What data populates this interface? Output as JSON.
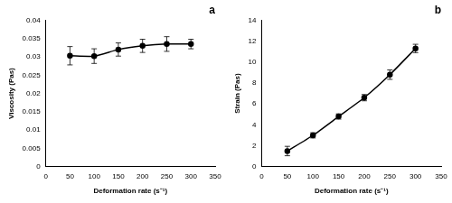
{
  "chart_data": [
    {
      "type": "line",
      "title": "a",
      "x_label": "Deformation rate (s⁻¹)",
      "y_label": "Viscosity (Pas)",
      "x": [
        50,
        100,
        150,
        200,
        250,
        300
      ],
      "values": [
        0.0303,
        0.0302,
        0.032,
        0.033,
        0.0335,
        0.0335
      ],
      "errors": [
        0.0025,
        0.002,
        0.0018,
        0.0018,
        0.002,
        0.0013
      ],
      "color": "#000000",
      "marker": "circle",
      "line_style": "solid",
      "xlim": [
        0,
        350
      ],
      "xticks": [
        0,
        50,
        100,
        150,
        200,
        250,
        300,
        350
      ],
      "ylim": [
        0,
        0.04
      ],
      "yticks": [
        0,
        0.005,
        0.01,
        0.015,
        0.02,
        0.025,
        0.03,
        0.035,
        0.04
      ],
      "grid": false
    },
    {
      "type": "line",
      "title": "b",
      "x_label": "Deformation rate (s⁻¹)",
      "y_label": "Strain (Pas)",
      "x": [
        50,
        100,
        150,
        200,
        250,
        300
      ],
      "values": [
        1.5,
        3.0,
        4.8,
        6.6,
        8.8,
        11.3
      ],
      "errors": [
        0.45,
        0.25,
        0.25,
        0.3,
        0.45,
        0.4
      ],
      "color": "#000000",
      "marker": "circle",
      "line_style": "solid",
      "xlim": [
        0,
        350
      ],
      "xticks": [
        0,
        50,
        100,
        150,
        200,
        250,
        300,
        350
      ],
      "ylim": [
        0,
        14
      ],
      "yticks": [
        0,
        2,
        4,
        6,
        8,
        10,
        12,
        14
      ],
      "grid": false
    }
  ]
}
